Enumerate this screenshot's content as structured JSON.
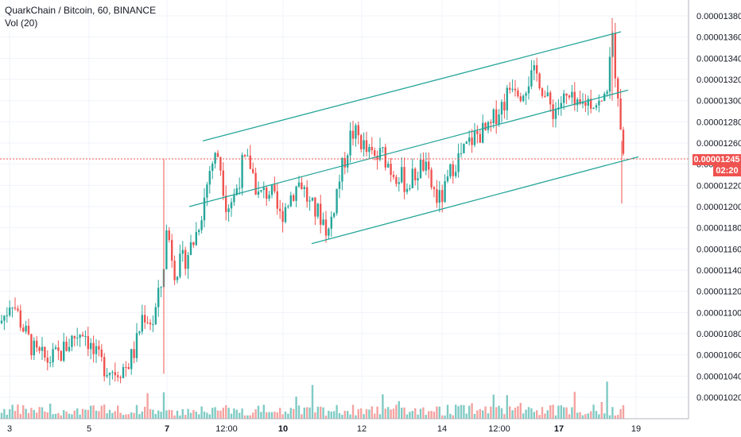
{
  "header": {
    "title": "QuarkChain / Bitcoin, 60, BINANCE",
    "volume_label": "Vol (20)"
  },
  "price_tag": {
    "value": "0.00001245",
    "timer": "02:20",
    "color": "#ef5350"
  },
  "colors": {
    "up": "#26a69a",
    "down": "#ef5350",
    "channel": "#26a69a",
    "vol_up": "#80cbc4",
    "vol_down": "#f4a3a1"
  },
  "chart_data": {
    "type": "candlestick",
    "y_axis": {
      "ticks": [
        "0.00001380",
        "0.00001360",
        "0.00001340",
        "0.00001320",
        "0.00001300",
        "0.00001280",
        "0.00001260",
        "0.00001240",
        "0.00001220",
        "0.00001200",
        "0.00001180",
        "0.00001160",
        "0.00001140",
        "0.00001120",
        "0.00001100",
        "0.00001080",
        "0.00001060",
        "0.00001040",
        "0.00001020"
      ],
      "ylim": [
        1.01e-05,
        1.39e-05
      ]
    },
    "x_axis": {
      "ticks": [
        "3",
        "5",
        "7",
        "12:00",
        "10",
        "12",
        "14",
        "12:00",
        "17",
        "19"
      ]
    },
    "price_path": [
      [
        0,
        1.09e-05
      ],
      [
        8,
        1.1e-05
      ],
      [
        14,
        1.115e-05
      ],
      [
        24,
        1.095e-05
      ],
      [
        32,
        1.08e-05
      ],
      [
        45,
        1.06e-05
      ],
      [
        60,
        1.055e-05
      ],
      [
        75,
        1.06e-05
      ],
      [
        90,
        1.075e-05
      ],
      [
        105,
        1.085e-05
      ],
      [
        118,
        1.06e-05
      ],
      [
        130,
        1.05e-05
      ],
      [
        145,
        1.045e-05
      ],
      [
        160,
        1.05e-05
      ],
      [
        170,
        1.065e-05
      ],
      [
        180,
        1.1e-05
      ],
      [
        192,
        1.09e-05
      ],
      [
        204,
        1.13e-05
      ],
      [
        210,
        1.18e-05
      ],
      [
        220,
        1.14e-05
      ],
      [
        232,
        1.15e-05
      ],
      [
        245,
        1.17e-05
      ],
      [
        255,
        1.2e-05
      ],
      [
        265,
        1.24e-05
      ],
      [
        275,
        1.25e-05
      ],
      [
        285,
        1.2e-05
      ],
      [
        295,
        1.21e-05
      ],
      [
        305,
        1.24e-05
      ],
      [
        315,
        1.24e-05
      ],
      [
        325,
        1.21e-05
      ],
      [
        340,
        1.215e-05
      ],
      [
        352,
        1.19e-05
      ],
      [
        365,
        1.21e-05
      ],
      [
        378,
        1.225e-05
      ],
      [
        390,
        1.2e-05
      ],
      [
        405,
        1.19e-05
      ],
      [
        413,
        1.175e-05
      ],
      [
        425,
        1.22e-05
      ],
      [
        432,
        1.24e-05
      ],
      [
        442,
        1.27e-05
      ],
      [
        452,
        1.265e-05
      ],
      [
        462,
        1.25e-05
      ],
      [
        472,
        1.245e-05
      ],
      [
        482,
        1.25e-05
      ],
      [
        492,
        1.235e-05
      ],
      [
        502,
        1.23e-05
      ],
      [
        512,
        1.22e-05
      ],
      [
        522,
        1.23e-05
      ],
      [
        532,
        1.24e-05
      ],
      [
        542,
        1.22e-05
      ],
      [
        552,
        1.205e-05
      ],
      [
        560,
        1.215e-05
      ],
      [
        570,
        1.24e-05
      ],
      [
        582,
        1.25e-05
      ],
      [
        595,
        1.265e-05
      ],
      [
        605,
        1.27e-05
      ],
      [
        615,
        1.27e-05
      ],
      [
        625,
        1.29e-05
      ],
      [
        635,
        1.3e-05
      ],
      [
        645,
        1.32e-05
      ],
      [
        655,
        1.31e-05
      ],
      [
        665,
        1.32e-05
      ],
      [
        677,
        1.325e-05
      ],
      [
        687,
        1.3e-05
      ],
      [
        697,
        1.29e-05
      ],
      [
        707,
        1.3e-05
      ],
      [
        717,
        1.3e-05
      ],
      [
        727,
        1.29e-05
      ],
      [
        737,
        1.3e-05
      ],
      [
        747,
        1.3e-05
      ],
      [
        757,
        1.295e-05
      ],
      [
        765,
        1.32e-05
      ],
      [
        770,
        1.36e-05
      ],
      [
        775,
        1.32e-05
      ],
      [
        779,
        1.3e-05
      ],
      [
        782,
        1.26e-05
      ],
      [
        785,
        1.245e-05
      ]
    ],
    "channels": [
      {
        "points": [
          [
            "start",
            1.262e-05
          ],
          [
            "end",
            1.365e-05
          ]
        ]
      },
      {
        "points": [
          [
            "start",
            1.2e-05
          ],
          [
            "end",
            1.31e-05
          ]
        ]
      },
      {
        "points": [
          [
            "start",
            1.165e-05
          ],
          [
            "end",
            1.247e-05
          ]
        ]
      }
    ],
    "current_price": 1.245e-05
  }
}
